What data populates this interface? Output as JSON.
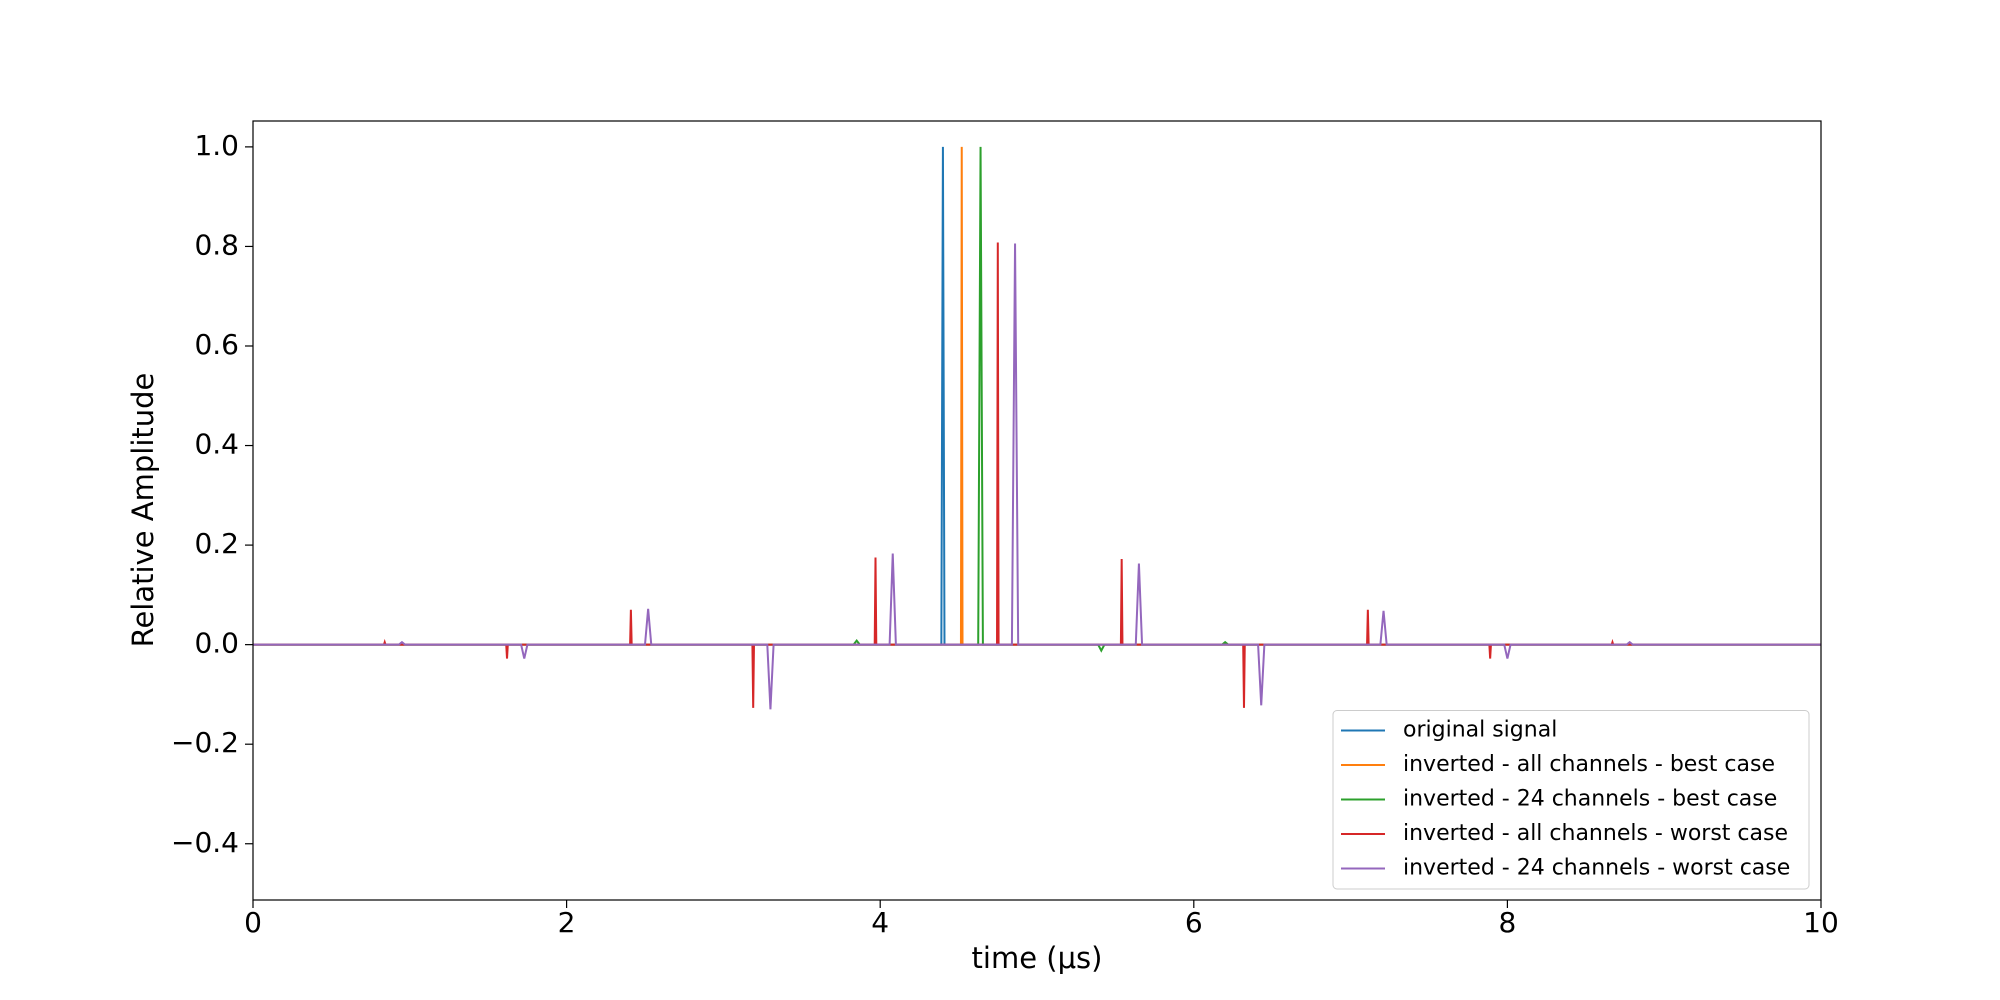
{
  "chart_data": {
    "type": "line",
    "xlabel": "time (μs)",
    "ylabel": "Relative Amplitude",
    "xlim": [
      0,
      10
    ],
    "ylim": [
      -0.513,
      1.052
    ],
    "xticks": [
      0,
      2,
      4,
      6,
      8,
      10
    ],
    "yticks": [
      {
        "value": -0.4,
        "label": "−0.4"
      },
      {
        "value": -0.2,
        "label": "−0.2"
      },
      {
        "value": 0,
        "label": "0.0"
      },
      0.2,
      0.4,
      0.6,
      0.8,
      {
        "value": 1,
        "label": "1.0"
      }
    ],
    "legend": "lower right",
    "series": [
      {
        "name": "original signal",
        "color": "#1f77b4",
        "x": [
          0,
          4.39,
          4.4,
          4.41,
          10
        ],
        "values": [
          0,
          0,
          1,
          0,
          0
        ]
      },
      {
        "name": "inverted - all channels - best case",
        "color": "#ff7f0e",
        "x": [
          0,
          4.515,
          4.52,
          4.525,
          10
        ],
        "values": [
          0,
          0,
          1,
          0,
          0
        ]
      },
      {
        "name": "inverted - 24 channels - best case",
        "color": "#2ca02c",
        "x": [
          0,
          3.83,
          3.85,
          3.87,
          4.625,
          4.64,
          4.655,
          5.39,
          5.41,
          5.43,
          6.18,
          6.2,
          6.22,
          10
        ],
        "values": [
          0,
          0,
          0.008,
          0,
          0,
          1,
          0,
          0,
          -0.012,
          0,
          0,
          0.005,
          0,
          0
        ]
      },
      {
        "name": "inverted - all channels - worst case",
        "color": "#d62728",
        "x": [
          0,
          0.835,
          0.84,
          0.845,
          1.615,
          1.62,
          1.625,
          2.405,
          2.41,
          2.415,
          3.185,
          3.19,
          3.195,
          3.965,
          3.97,
          3.975,
          4.745,
          4.75,
          4.755,
          5.535,
          5.54,
          5.545,
          6.315,
          6.32,
          6.325,
          7.105,
          7.11,
          7.115,
          7.885,
          7.89,
          7.895,
          8.665,
          8.67,
          8.675,
          10
        ],
        "values": [
          0,
          0,
          0.005,
          0,
          0,
          -0.028,
          0,
          0,
          0.07,
          0,
          0,
          -0.127,
          0,
          0,
          0.175,
          0,
          0,
          0.808,
          0,
          0,
          0.172,
          0,
          0,
          -0.127,
          0,
          0,
          0.07,
          0,
          0,
          -0.028,
          0,
          0,
          0.005,
          0,
          0
        ]
      },
      {
        "name": "inverted - 24 channels - worst case",
        "color": "#9467bd",
        "x": [
          0,
          0.93,
          0.95,
          0.97,
          1.71,
          1.73,
          1.75,
          2.5,
          2.52,
          2.54,
          3.28,
          3.3,
          3.32,
          4.06,
          4.08,
          4.1,
          4.84,
          4.86,
          4.88,
          5.63,
          5.65,
          5.67,
          6.41,
          6.43,
          6.45,
          7.19,
          7.21,
          7.23,
          7.98,
          8.0,
          8.02,
          8.76,
          8.78,
          8.8,
          10
        ],
        "values": [
          0,
          0,
          0.005,
          0,
          0,
          -0.028,
          0,
          0,
          0.072,
          0,
          0,
          -0.13,
          0,
          0,
          0.183,
          0,
          0,
          0.806,
          0,
          0,
          0.163,
          0,
          0,
          -0.122,
          0,
          0,
          0.068,
          0,
          0,
          -0.028,
          0,
          0,
          0.005,
          0,
          0
        ]
      }
    ]
  }
}
